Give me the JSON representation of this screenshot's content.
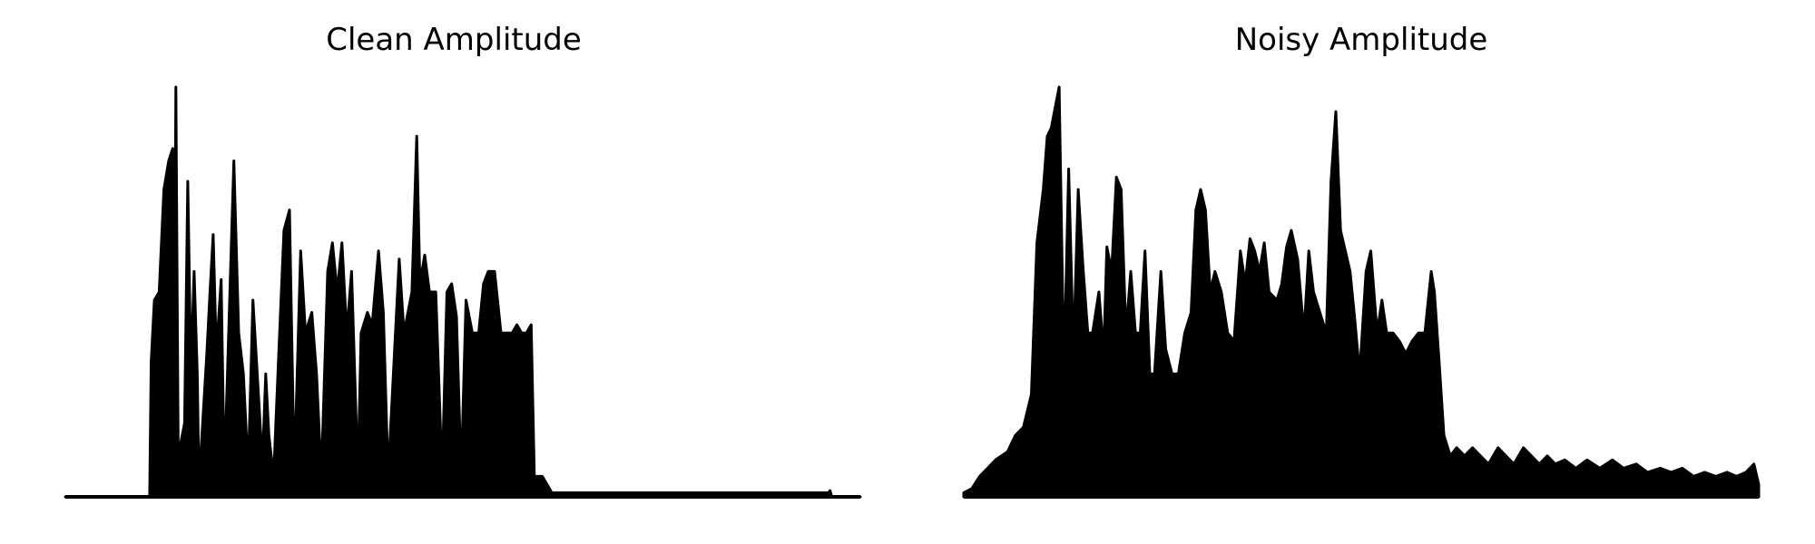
{
  "chart_data": [
    {
      "type": "area",
      "title": "Clean Amplitude",
      "color": "#000000",
      "axes_visible": false,
      "grid": false,
      "envelope": [
        [
          0.0,
          0.0
        ],
        [
          0.106,
          0.0
        ],
        [
          0.108,
          0.33
        ],
        [
          0.112,
          0.48
        ],
        [
          0.118,
          0.5
        ],
        [
          0.124,
          0.75
        ],
        [
          0.13,
          0.82
        ],
        [
          0.135,
          0.85
        ],
        [
          0.137,
          0.3
        ],
        [
          0.139,
          1.0
        ],
        [
          0.142,
          0.1
        ],
        [
          0.15,
          0.18
        ],
        [
          0.154,
          0.77
        ],
        [
          0.158,
          0.3
        ],
        [
          0.162,
          0.55
        ],
        [
          0.166,
          0.3
        ],
        [
          0.168,
          0.03
        ],
        [
          0.178,
          0.35
        ],
        [
          0.182,
          0.5
        ],
        [
          0.186,
          0.64
        ],
        [
          0.19,
          0.35
        ],
        [
          0.196,
          0.53
        ],
        [
          0.2,
          0.05
        ],
        [
          0.212,
          0.82
        ],
        [
          0.218,
          0.4
        ],
        [
          0.224,
          0.3
        ],
        [
          0.23,
          0.06
        ],
        [
          0.236,
          0.48
        ],
        [
          0.242,
          0.28
        ],
        [
          0.248,
          0.08
        ],
        [
          0.252,
          0.3
        ],
        [
          0.256,
          0.15
        ],
        [
          0.262,
          0.05
        ],
        [
          0.268,
          0.33
        ],
        [
          0.275,
          0.65
        ],
        [
          0.282,
          0.7
        ],
        [
          0.288,
          0.05
        ],
        [
          0.296,
          0.6
        ],
        [
          0.302,
          0.4
        ],
        [
          0.31,
          0.45
        ],
        [
          0.316,
          0.3
        ],
        [
          0.322,
          0.05
        ],
        [
          0.33,
          0.55
        ],
        [
          0.336,
          0.62
        ],
        [
          0.342,
          0.5
        ],
        [
          0.348,
          0.62
        ],
        [
          0.354,
          0.4
        ],
        [
          0.36,
          0.55
        ],
        [
          0.368,
          0.05
        ],
        [
          0.372,
          0.4
        ],
        [
          0.38,
          0.45
        ],
        [
          0.386,
          0.42
        ],
        [
          0.394,
          0.6
        ],
        [
          0.4,
          0.45
        ],
        [
          0.406,
          0.05
        ],
        [
          0.42,
          0.58
        ],
        [
          0.426,
          0.4
        ],
        [
          0.436,
          0.5
        ],
        [
          0.442,
          0.88
        ],
        [
          0.446,
          0.52
        ],
        [
          0.452,
          0.59
        ],
        [
          0.458,
          0.5
        ],
        [
          0.466,
          0.5
        ],
        [
          0.474,
          0.05
        ],
        [
          0.48,
          0.5
        ],
        [
          0.486,
          0.52
        ],
        [
          0.492,
          0.44
        ],
        [
          0.498,
          0.05
        ],
        [
          0.504,
          0.48
        ],
        [
          0.512,
          0.4
        ],
        [
          0.52,
          0.4
        ],
        [
          0.526,
          0.52
        ],
        [
          0.532,
          0.55
        ],
        [
          0.54,
          0.55
        ],
        [
          0.548,
          0.4
        ],
        [
          0.556,
          0.4
        ],
        [
          0.562,
          0.4
        ],
        [
          0.568,
          0.42
        ],
        [
          0.574,
          0.4
        ],
        [
          0.58,
          0.4
        ],
        [
          0.586,
          0.42
        ],
        [
          0.59,
          0.05
        ],
        [
          0.6,
          0.05
        ],
        [
          0.612,
          0.01
        ],
        [
          0.96,
          0.01
        ],
        [
          0.962,
          0.015
        ],
        [
          0.964,
          0.0
        ],
        [
          1.0,
          0.0
        ]
      ]
    },
    {
      "type": "area",
      "title": "Noisy Amplitude",
      "color": "#000000",
      "axes_visible": false,
      "grid": false,
      "envelope": [
        [
          0.0,
          0.01
        ],
        [
          0.01,
          0.02
        ],
        [
          0.02,
          0.05
        ],
        [
          0.03,
          0.07
        ],
        [
          0.04,
          0.09
        ],
        [
          0.055,
          0.11
        ],
        [
          0.065,
          0.15
        ],
        [
          0.075,
          0.17
        ],
        [
          0.085,
          0.25
        ],
        [
          0.092,
          0.62
        ],
        [
          0.1,
          0.75
        ],
        [
          0.105,
          0.88
        ],
        [
          0.11,
          0.9
        ],
        [
          0.115,
          0.95
        ],
        [
          0.12,
          1.0
        ],
        [
          0.126,
          0.3
        ],
        [
          0.132,
          0.8
        ],
        [
          0.138,
          0.35
        ],
        [
          0.144,
          0.75
        ],
        [
          0.15,
          0.56
        ],
        [
          0.156,
          0.4
        ],
        [
          0.162,
          0.4
        ],
        [
          0.17,
          0.5
        ],
        [
          0.176,
          0.35
        ],
        [
          0.18,
          0.61
        ],
        [
          0.186,
          0.55
        ],
        [
          0.192,
          0.78
        ],
        [
          0.198,
          0.75
        ],
        [
          0.204,
          0.4
        ],
        [
          0.21,
          0.55
        ],
        [
          0.216,
          0.4
        ],
        [
          0.222,
          0.4
        ],
        [
          0.228,
          0.6
        ],
        [
          0.234,
          0.3
        ],
        [
          0.24,
          0.3
        ],
        [
          0.248,
          0.55
        ],
        [
          0.254,
          0.36
        ],
        [
          0.262,
          0.3
        ],
        [
          0.27,
          0.3
        ],
        [
          0.278,
          0.4
        ],
        [
          0.286,
          0.45
        ],
        [
          0.292,
          0.7
        ],
        [
          0.298,
          0.75
        ],
        [
          0.304,
          0.7
        ],
        [
          0.31,
          0.5
        ],
        [
          0.316,
          0.55
        ],
        [
          0.324,
          0.5
        ],
        [
          0.332,
          0.4
        ],
        [
          0.34,
          0.38
        ],
        [
          0.348,
          0.6
        ],
        [
          0.354,
          0.52
        ],
        [
          0.36,
          0.63
        ],
        [
          0.366,
          0.6
        ],
        [
          0.372,
          0.55
        ],
        [
          0.378,
          0.62
        ],
        [
          0.384,
          0.5
        ],
        [
          0.394,
          0.48
        ],
        [
          0.4,
          0.52
        ],
        [
          0.406,
          0.61
        ],
        [
          0.412,
          0.65
        ],
        [
          0.42,
          0.58
        ],
        [
          0.428,
          0.4
        ],
        [
          0.434,
          0.6
        ],
        [
          0.44,
          0.5
        ],
        [
          0.448,
          0.45
        ],
        [
          0.456,
          0.4
        ],
        [
          0.462,
          0.77
        ],
        [
          0.468,
          0.94
        ],
        [
          0.474,
          0.65
        ],
        [
          0.48,
          0.6
        ],
        [
          0.486,
          0.55
        ],
        [
          0.492,
          0.43
        ],
        [
          0.498,
          0.3
        ],
        [
          0.506,
          0.55
        ],
        [
          0.512,
          0.6
        ],
        [
          0.52,
          0.4
        ],
        [
          0.526,
          0.48
        ],
        [
          0.532,
          0.4
        ],
        [
          0.54,
          0.4
        ],
        [
          0.548,
          0.38
        ],
        [
          0.556,
          0.35
        ],
        [
          0.564,
          0.38
        ],
        [
          0.572,
          0.4
        ],
        [
          0.58,
          0.4
        ],
        [
          0.588,
          0.55
        ],
        [
          0.592,
          0.5
        ],
        [
          0.598,
          0.33
        ],
        [
          0.604,
          0.15
        ],
        [
          0.612,
          0.1
        ],
        [
          0.62,
          0.12
        ],
        [
          0.63,
          0.1
        ],
        [
          0.64,
          0.12
        ],
        [
          0.65,
          0.1
        ],
        [
          0.66,
          0.08
        ],
        [
          0.672,
          0.12
        ],
        [
          0.682,
          0.1
        ],
        [
          0.692,
          0.08
        ],
        [
          0.704,
          0.12
        ],
        [
          0.714,
          0.1
        ],
        [
          0.724,
          0.08
        ],
        [
          0.734,
          0.1
        ],
        [
          0.744,
          0.08
        ],
        [
          0.756,
          0.09
        ],
        [
          0.77,
          0.07
        ],
        [
          0.784,
          0.09
        ],
        [
          0.8,
          0.07
        ],
        [
          0.816,
          0.09
        ],
        [
          0.83,
          0.07
        ],
        [
          0.846,
          0.08
        ],
        [
          0.86,
          0.06
        ],
        [
          0.876,
          0.07
        ],
        [
          0.89,
          0.06
        ],
        [
          0.904,
          0.07
        ],
        [
          0.918,
          0.05
        ],
        [
          0.932,
          0.06
        ],
        [
          0.946,
          0.05
        ],
        [
          0.96,
          0.06
        ],
        [
          0.972,
          0.05
        ],
        [
          0.984,
          0.06
        ],
        [
          0.994,
          0.08
        ],
        [
          1.0,
          0.03
        ]
      ]
    }
  ]
}
